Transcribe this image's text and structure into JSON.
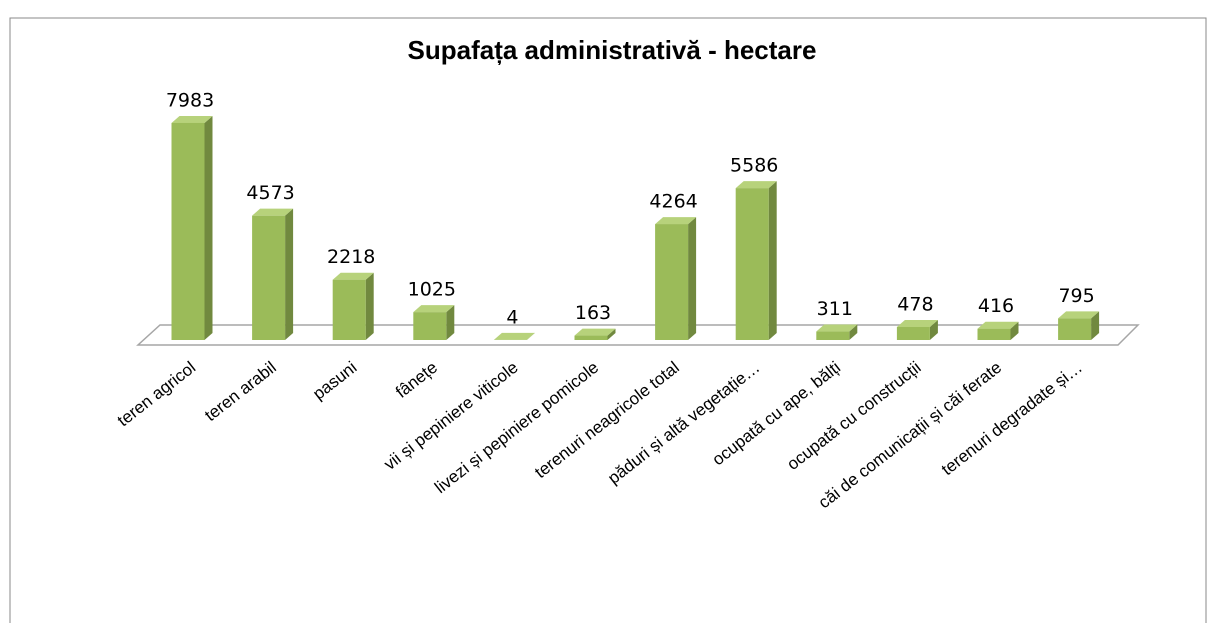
{
  "chart_data": {
    "type": "bar3d",
    "title": "Supafața administrativă - hectare",
    "categories": [
      "teren agricol",
      "teren arabil",
      "pasuni",
      "fânețe",
      "vii și pepiniere viticole",
      "livezi și pepiniere pomicole",
      "terenuri neagricole total",
      "păduri și altă vegetație…",
      "ocupată cu ape, bălți",
      "ocupată cu construcții",
      "căi de comunicații și căi ferate",
      "terenuri degradate și…"
    ],
    "values": [
      7983,
      4573,
      2218,
      1025,
      4,
      163,
      4264,
      5586,
      311,
      478,
      416,
      795
    ],
    "color": "#9bbb59",
    "ylim": [
      0,
      8000
    ]
  }
}
